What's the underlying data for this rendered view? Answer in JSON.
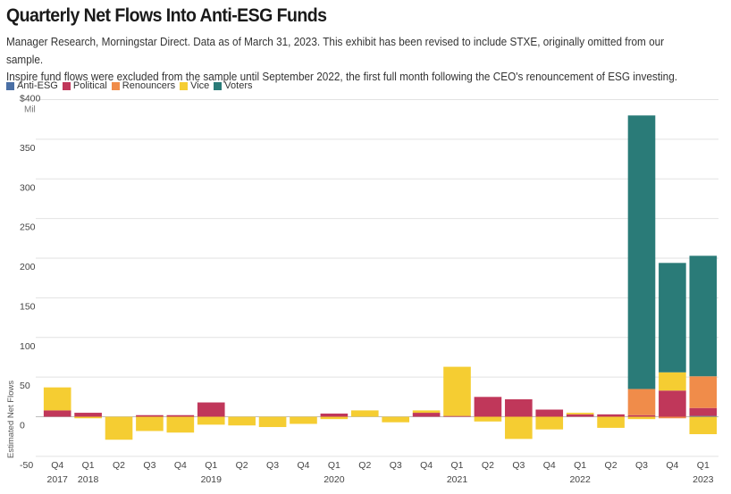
{
  "title": "Quarterly Net Flows Into Anti-ESG Funds",
  "subtitle": [
    "Manager Research, Morningstar Direct. Data as of March 31, 2023. This exhibit has been revised to include STXE, originally omitted from our sample.",
    "Inspire fund flows were excluded from the sample until September 2022, the first full month following the CEO's renouncement of ESG investing."
  ],
  "legend": [
    {
      "name": "Anti-ESG",
      "color": "#4a6fa5"
    },
    {
      "name": "Political",
      "color": "#c0375a"
    },
    {
      "name": "Renouncers",
      "color": "#f08c4a"
    },
    {
      "name": "Vice",
      "color": "#f5cd32"
    },
    {
      "name": "Voters",
      "color": "#2a7b78"
    }
  ],
  "chart_data": {
    "type": "bar",
    "stacked": true,
    "ylabel": "Estimated Net Flows",
    "ylim": [
      -55,
      400
    ],
    "yticks": [
      {
        "value": 400,
        "label": "$400",
        "sublabel": "Mil"
      },
      {
        "value": 350,
        "label": "350"
      },
      {
        "value": 300,
        "label": "300"
      },
      {
        "value": 250,
        "label": "250"
      },
      {
        "value": 200,
        "label": "200"
      },
      {
        "value": 150,
        "label": "150"
      },
      {
        "value": 100,
        "label": "100"
      },
      {
        "value": 50,
        "label": "50"
      },
      {
        "value": 0,
        "label": "0"
      },
      {
        "value": -50,
        "label": "-50"
      }
    ],
    "grid": true,
    "categories": [
      {
        "q": "Q4",
        "year": "2017"
      },
      {
        "q": "Q1",
        "year": "2018"
      },
      {
        "q": "Q2",
        "year": ""
      },
      {
        "q": "Q3",
        "year": ""
      },
      {
        "q": "Q4",
        "year": ""
      },
      {
        "q": "Q1",
        "year": "2019"
      },
      {
        "q": "Q2",
        "year": ""
      },
      {
        "q": "Q3",
        "year": ""
      },
      {
        "q": "Q4",
        "year": ""
      },
      {
        "q": "Q1",
        "year": "2020"
      },
      {
        "q": "Q2",
        "year": ""
      },
      {
        "q": "Q3",
        "year": ""
      },
      {
        "q": "Q4",
        "year": ""
      },
      {
        "q": "Q1",
        "year": "2021"
      },
      {
        "q": "Q2",
        "year": ""
      },
      {
        "q": "Q3",
        "year": ""
      },
      {
        "q": "Q4",
        "year": ""
      },
      {
        "q": "Q1",
        "year": "2022"
      },
      {
        "q": "Q2",
        "year": ""
      },
      {
        "q": "Q3",
        "year": ""
      },
      {
        "q": "Q4",
        "year": ""
      },
      {
        "q": "Q1",
        "year": "2023"
      }
    ],
    "series": [
      {
        "name": "Anti-ESG",
        "color": "#4a6fa5",
        "values": [
          0,
          0,
          0,
          0,
          0,
          0,
          0,
          0,
          0,
          0,
          0,
          0,
          0,
          0,
          0,
          0,
          0,
          0,
          0,
          0,
          0,
          1
        ]
      },
      {
        "name": "Political",
        "color": "#c0375a",
        "values": [
          8,
          5,
          0,
          2,
          2,
          18,
          0,
          0,
          0,
          4,
          0,
          0,
          5,
          1,
          25,
          22,
          9,
          3,
          3,
          2,
          33,
          10
        ]
      },
      {
        "name": "Renouncers",
        "color": "#f08c4a",
        "values": [
          0,
          0,
          0,
          0,
          0,
          0,
          0,
          0,
          0,
          0,
          0,
          0,
          0,
          0,
          0,
          0,
          0,
          0,
          0,
          33,
          -2,
          40
        ]
      },
      {
        "name": "Vice",
        "color": "#f5cd32",
        "values": [
          29,
          -2,
          -29,
          -18,
          -20,
          -10,
          -11,
          -13,
          -9,
          -3,
          8,
          -7,
          3,
          62,
          -6,
          -28,
          -16,
          2,
          -14,
          -3,
          23,
          -22
        ]
      },
      {
        "name": "Voters",
        "color": "#2a7b78",
        "values": [
          0,
          0,
          0,
          0,
          0,
          0,
          0,
          0,
          0,
          0,
          0,
          0,
          0,
          0,
          0,
          0,
          0,
          0,
          0,
          345,
          138,
          152
        ]
      }
    ]
  }
}
